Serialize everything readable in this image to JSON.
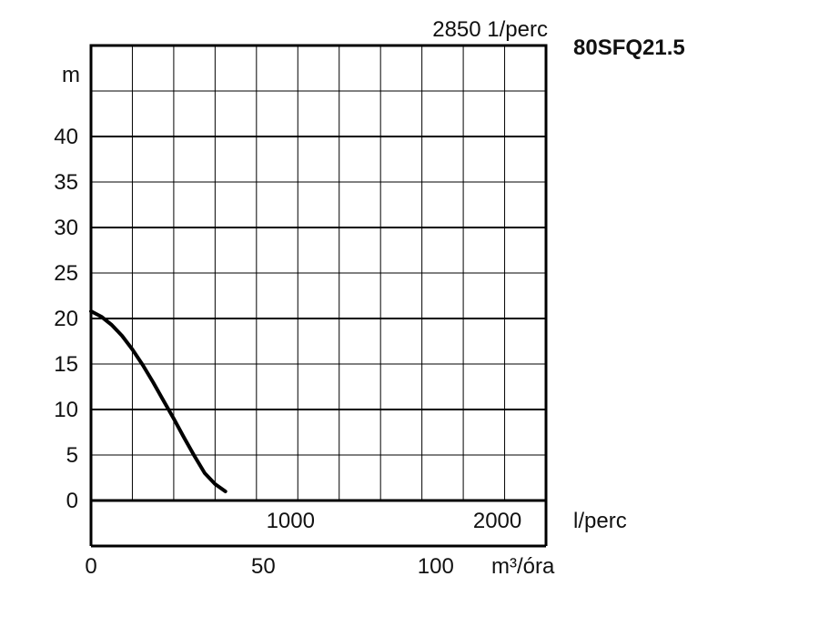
{
  "chart_data": {
    "type": "line",
    "title": "80SFQ21.5",
    "subtitle": "2850 1/perc",
    "ylabel": "m",
    "xlabel_primary": "l/perc",
    "xlabel_secondary": "m³/óra",
    "ylim": [
      0,
      50
    ],
    "xlim_lpm": [
      0,
      2200
    ],
    "xlim_m3h": [
      0,
      132
    ],
    "y_ticks": [
      "0",
      "5",
      "10",
      "15",
      "20",
      "25",
      "30",
      "35",
      "40"
    ],
    "x_ticks_lpm": [
      "1000",
      "2000"
    ],
    "x_ticks_m3h": [
      "0",
      "50",
      "100"
    ],
    "grid": true,
    "colors": {
      "curve": "#000000",
      "grid": "#000000"
    },
    "series": [
      {
        "x": [
          0,
          50,
          100,
          150,
          200,
          250,
          300,
          350,
          400,
          450,
          500,
          550,
          600,
          650
        ],
        "y": [
          20.8,
          20.2,
          19.3,
          18.1,
          16.6,
          14.9,
          13.0,
          11.0,
          9.0,
          6.9,
          4.9,
          3.0,
          1.8,
          1.0
        ]
      }
    ]
  }
}
